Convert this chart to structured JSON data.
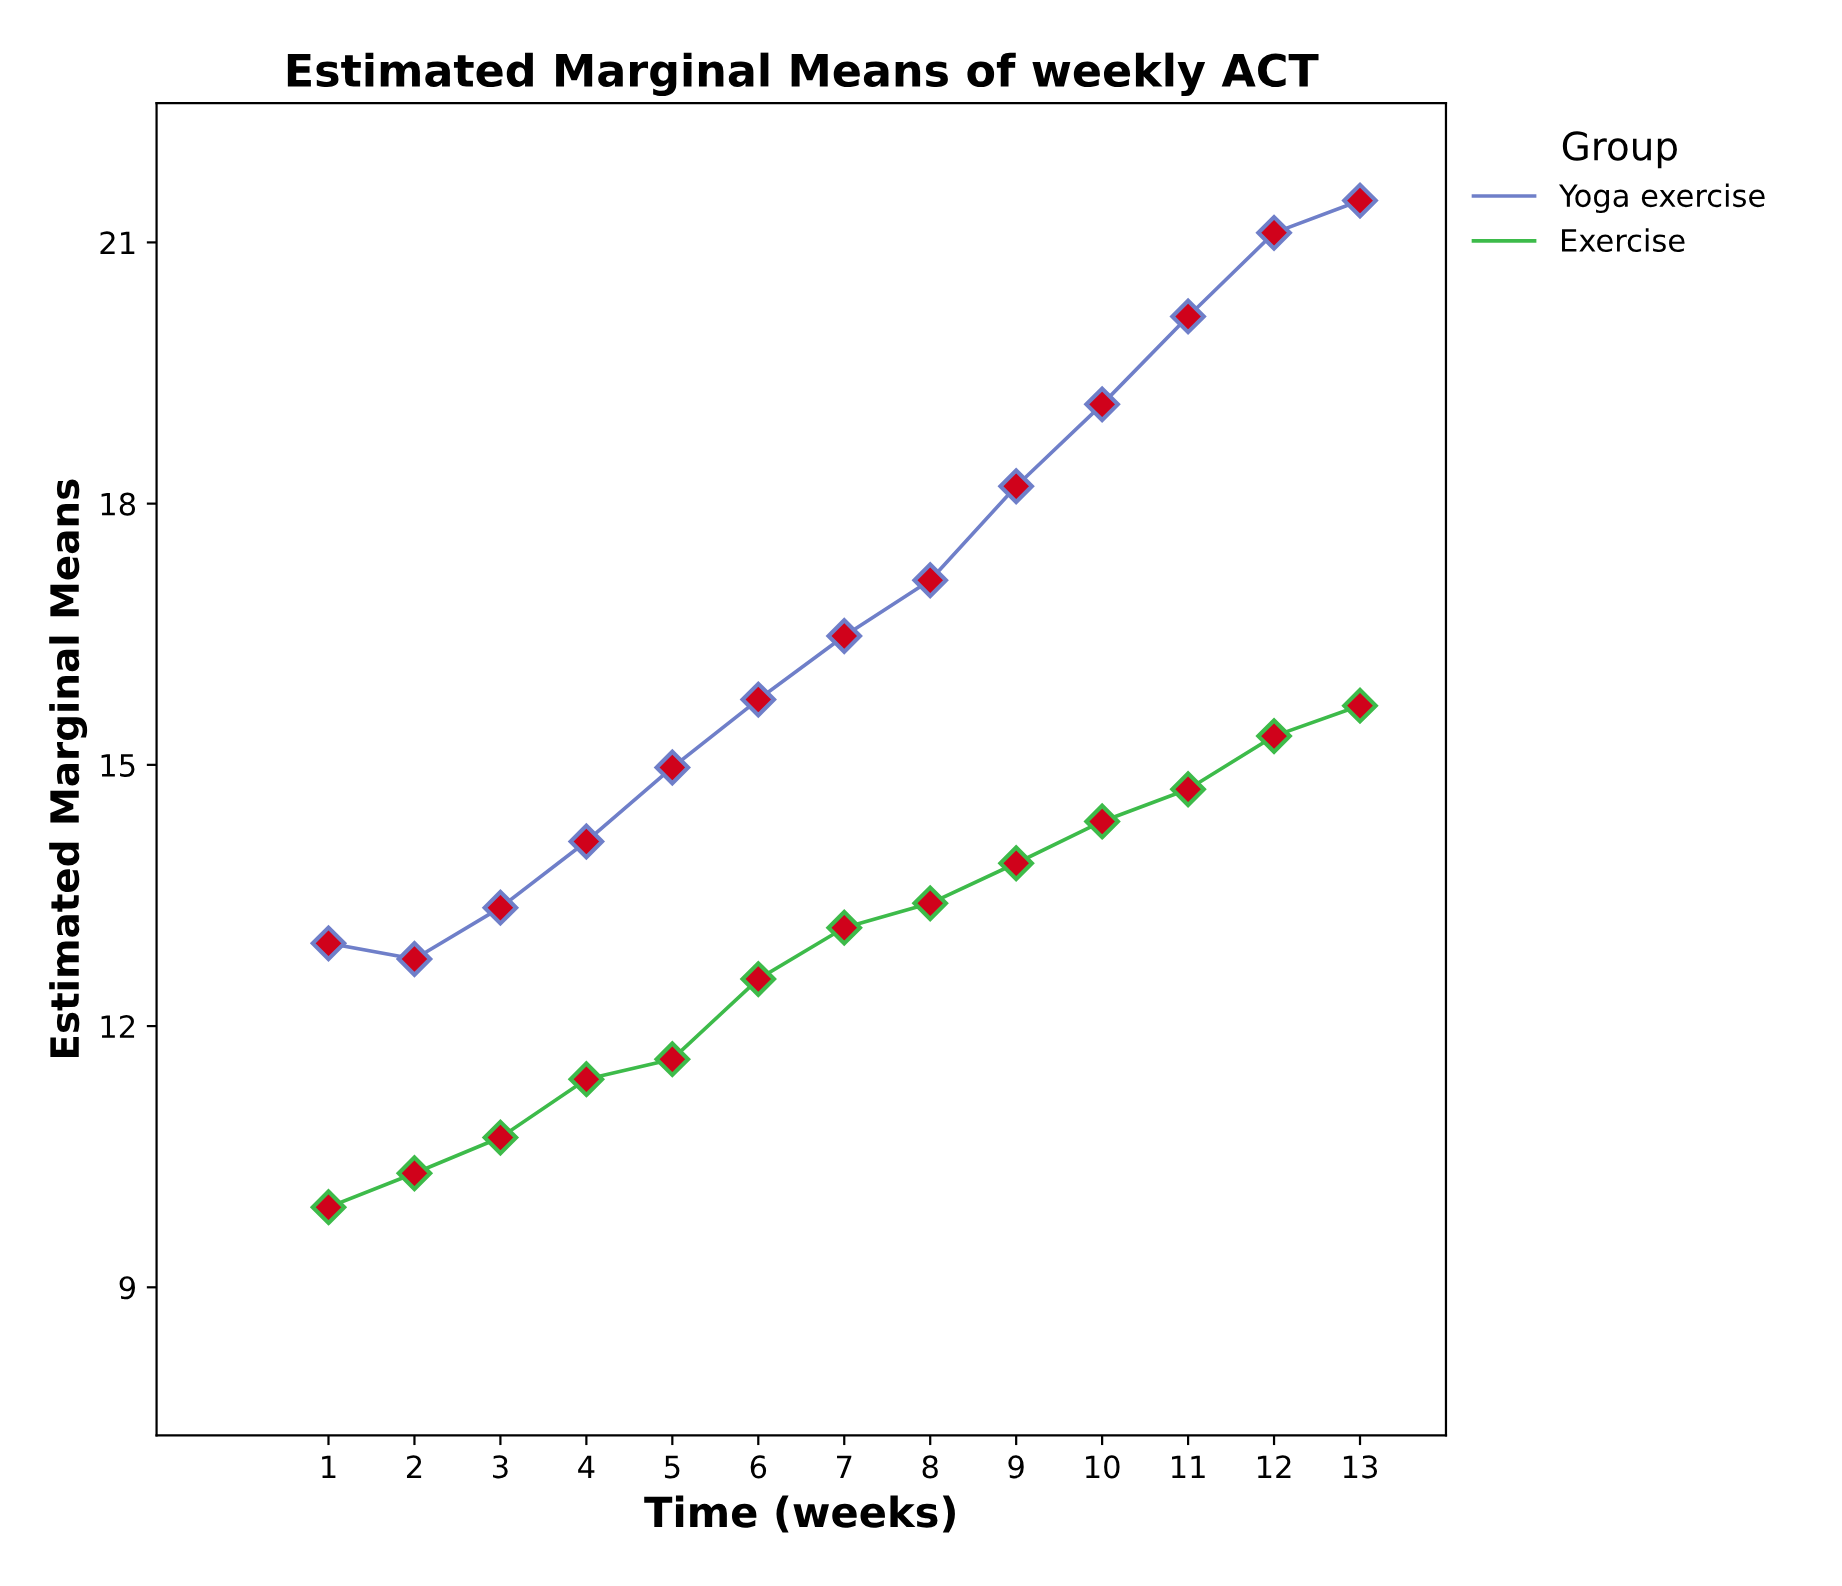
{
  "chart_data": {
    "type": "line",
    "title": "Estimated Marginal Means of weekly ACT",
    "xlabel": "Time (weeks)",
    "ylabel": "Estimated Marginal Means",
    "legend_title": "Group",
    "x": [
      1,
      2,
      3,
      4,
      5,
      6,
      7,
      8,
      9,
      10,
      11,
      12,
      13
    ],
    "series": [
      {
        "name": "Yoga exercise",
        "color": "#6f7fc9",
        "values": [
          12.95,
          12.77,
          13.36,
          14.12,
          14.97,
          15.75,
          16.48,
          17.12,
          18.2,
          19.14,
          20.15,
          21.11,
          21.48
        ]
      },
      {
        "name": "Exercise",
        "color": "#3dbb4a",
        "values": [
          9.92,
          10.31,
          10.72,
          11.39,
          11.62,
          12.54,
          13.13,
          13.41,
          13.87,
          14.35,
          14.72,
          15.33,
          15.68
        ]
      }
    ],
    "xlim": [
      -1,
      14
    ],
    "xticks": [
      1,
      2,
      3,
      4,
      5,
      6,
      7,
      8,
      9,
      10,
      11,
      12,
      13
    ],
    "ylim": [
      7.3,
      22.6
    ],
    "yticks": [
      9,
      12,
      15,
      18,
      21
    ],
    "marker": "diamond",
    "line_style": "solid",
    "legend": "top right",
    "grid": false
  }
}
